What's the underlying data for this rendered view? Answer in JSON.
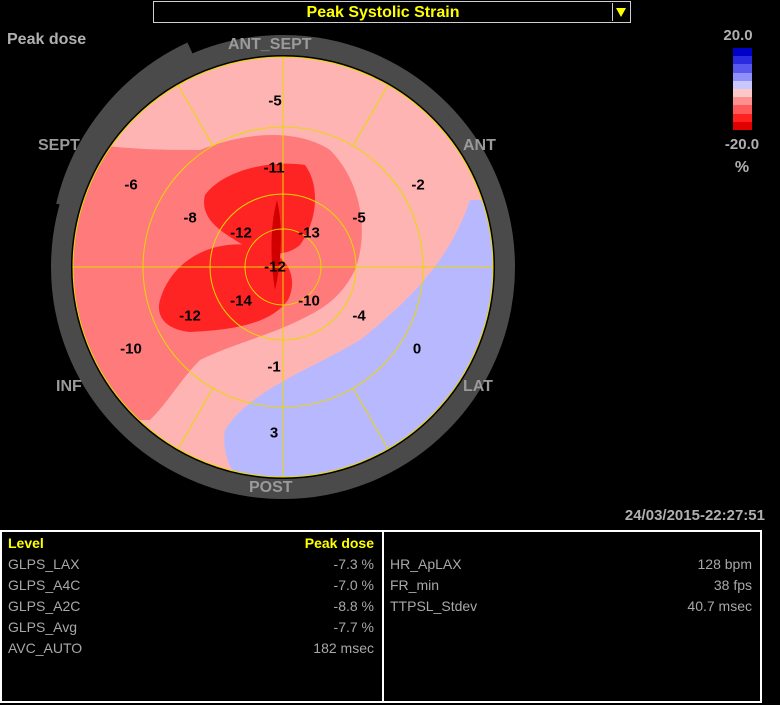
{
  "title": "Peak Systolic Strain",
  "dataset_label": "Peak dose",
  "scale": {
    "max": "20.0",
    "min": "-20.0",
    "unit": "%",
    "colors": [
      "#0000c8",
      "#2a2ae0",
      "#5858ee",
      "#9090f8",
      "#c8c8ff",
      "#ffc8c8",
      "#ff9090",
      "#ff5a5a",
      "#ff2020",
      "#e00000"
    ]
  },
  "segment_labels": {
    "ant_sept": "ANT_SEPT",
    "ant": "ANT",
    "lat": "LAT",
    "post": "POST",
    "inf": "INF",
    "sept": "SEPT"
  },
  "segment_values": {
    "basal_ant_sept": "-5",
    "basal_ant": "-2",
    "basal_lat": "0",
    "basal_post": "3",
    "basal_inf": "-10",
    "basal_sept": "-6",
    "mid_ant_sept": "-11",
    "mid_ant": "-5",
    "mid_lat": "-4",
    "mid_post": "-1",
    "mid_inf": "-12",
    "mid_sept": "-8",
    "apical_ant": "-13",
    "apical_lat": "-10",
    "apical_inf": "-14",
    "apical_sept": "-12",
    "apex": "-12"
  },
  "timestamp": "24/03/2015-22:27:51",
  "left_panel": {
    "header_key": "Level",
    "header_value": "Peak dose",
    "rows": [
      {
        "key": "GLPS_LAX",
        "value": "-7.3 %"
      },
      {
        "key": "GLPS_A4C",
        "value": "-7.0 %"
      },
      {
        "key": "GLPS_A2C",
        "value": "-8.8 %"
      },
      {
        "key": "GLPS_Avg",
        "value": "-7.7 %"
      },
      {
        "key": "AVC_AUTO",
        "value": "182 msec"
      }
    ]
  },
  "right_panel": {
    "rows": [
      {
        "key": "HR_ApLAX",
        "value": "128 bpm"
      },
      {
        "key": "FR_min",
        "value": "38 fps"
      },
      {
        "key": "TTPSL_Stdev",
        "value": "40.7 msec"
      }
    ]
  },
  "colors": {
    "accent": "#ffff00",
    "ring": "#4a4a4a",
    "grid": "#e8d800"
  }
}
